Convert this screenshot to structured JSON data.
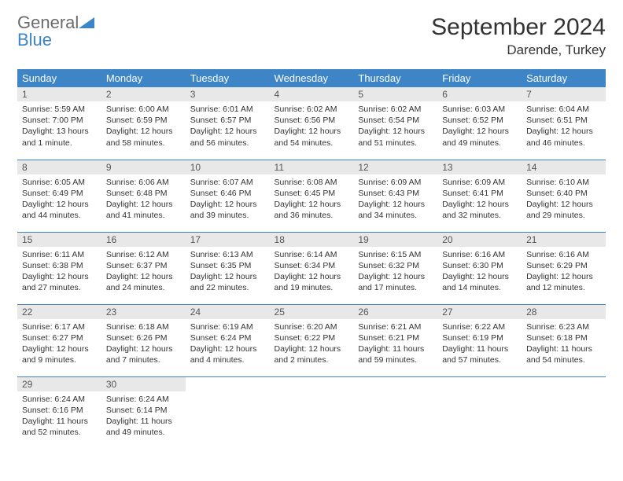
{
  "brand": {
    "word1": "General",
    "word2": "Blue",
    "shape_color": "#3d85c6",
    "text_color_gray": "#6b6b6b"
  },
  "title": "September 2024",
  "location": "Darende, Turkey",
  "colors": {
    "header_bg": "#3d85c6",
    "header_text": "#ffffff",
    "daynum_bg": "#e8e8e8",
    "rule": "#3d85c6"
  },
  "weekdays": [
    "Sunday",
    "Monday",
    "Tuesday",
    "Wednesday",
    "Thursday",
    "Friday",
    "Saturday"
  ],
  "days": [
    {
      "n": "1",
      "sunrise": "Sunrise: 5:59 AM",
      "sunset": "Sunset: 7:00 PM",
      "daylight": "Daylight: 13 hours and 1 minute."
    },
    {
      "n": "2",
      "sunrise": "Sunrise: 6:00 AM",
      "sunset": "Sunset: 6:59 PM",
      "daylight": "Daylight: 12 hours and 58 minutes."
    },
    {
      "n": "3",
      "sunrise": "Sunrise: 6:01 AM",
      "sunset": "Sunset: 6:57 PM",
      "daylight": "Daylight: 12 hours and 56 minutes."
    },
    {
      "n": "4",
      "sunrise": "Sunrise: 6:02 AM",
      "sunset": "Sunset: 6:56 PM",
      "daylight": "Daylight: 12 hours and 54 minutes."
    },
    {
      "n": "5",
      "sunrise": "Sunrise: 6:02 AM",
      "sunset": "Sunset: 6:54 PM",
      "daylight": "Daylight: 12 hours and 51 minutes."
    },
    {
      "n": "6",
      "sunrise": "Sunrise: 6:03 AM",
      "sunset": "Sunset: 6:52 PM",
      "daylight": "Daylight: 12 hours and 49 minutes."
    },
    {
      "n": "7",
      "sunrise": "Sunrise: 6:04 AM",
      "sunset": "Sunset: 6:51 PM",
      "daylight": "Daylight: 12 hours and 46 minutes."
    },
    {
      "n": "8",
      "sunrise": "Sunrise: 6:05 AM",
      "sunset": "Sunset: 6:49 PM",
      "daylight": "Daylight: 12 hours and 44 minutes."
    },
    {
      "n": "9",
      "sunrise": "Sunrise: 6:06 AM",
      "sunset": "Sunset: 6:48 PM",
      "daylight": "Daylight: 12 hours and 41 minutes."
    },
    {
      "n": "10",
      "sunrise": "Sunrise: 6:07 AM",
      "sunset": "Sunset: 6:46 PM",
      "daylight": "Daylight: 12 hours and 39 minutes."
    },
    {
      "n": "11",
      "sunrise": "Sunrise: 6:08 AM",
      "sunset": "Sunset: 6:45 PM",
      "daylight": "Daylight: 12 hours and 36 minutes."
    },
    {
      "n": "12",
      "sunrise": "Sunrise: 6:09 AM",
      "sunset": "Sunset: 6:43 PM",
      "daylight": "Daylight: 12 hours and 34 minutes."
    },
    {
      "n": "13",
      "sunrise": "Sunrise: 6:09 AM",
      "sunset": "Sunset: 6:41 PM",
      "daylight": "Daylight: 12 hours and 32 minutes."
    },
    {
      "n": "14",
      "sunrise": "Sunrise: 6:10 AM",
      "sunset": "Sunset: 6:40 PM",
      "daylight": "Daylight: 12 hours and 29 minutes."
    },
    {
      "n": "15",
      "sunrise": "Sunrise: 6:11 AM",
      "sunset": "Sunset: 6:38 PM",
      "daylight": "Daylight: 12 hours and 27 minutes."
    },
    {
      "n": "16",
      "sunrise": "Sunrise: 6:12 AM",
      "sunset": "Sunset: 6:37 PM",
      "daylight": "Daylight: 12 hours and 24 minutes."
    },
    {
      "n": "17",
      "sunrise": "Sunrise: 6:13 AM",
      "sunset": "Sunset: 6:35 PM",
      "daylight": "Daylight: 12 hours and 22 minutes."
    },
    {
      "n": "18",
      "sunrise": "Sunrise: 6:14 AM",
      "sunset": "Sunset: 6:34 PM",
      "daylight": "Daylight: 12 hours and 19 minutes."
    },
    {
      "n": "19",
      "sunrise": "Sunrise: 6:15 AM",
      "sunset": "Sunset: 6:32 PM",
      "daylight": "Daylight: 12 hours and 17 minutes."
    },
    {
      "n": "20",
      "sunrise": "Sunrise: 6:16 AM",
      "sunset": "Sunset: 6:30 PM",
      "daylight": "Daylight: 12 hours and 14 minutes."
    },
    {
      "n": "21",
      "sunrise": "Sunrise: 6:16 AM",
      "sunset": "Sunset: 6:29 PM",
      "daylight": "Daylight: 12 hours and 12 minutes."
    },
    {
      "n": "22",
      "sunrise": "Sunrise: 6:17 AM",
      "sunset": "Sunset: 6:27 PM",
      "daylight": "Daylight: 12 hours and 9 minutes."
    },
    {
      "n": "23",
      "sunrise": "Sunrise: 6:18 AM",
      "sunset": "Sunset: 6:26 PM",
      "daylight": "Daylight: 12 hours and 7 minutes."
    },
    {
      "n": "24",
      "sunrise": "Sunrise: 6:19 AM",
      "sunset": "Sunset: 6:24 PM",
      "daylight": "Daylight: 12 hours and 4 minutes."
    },
    {
      "n": "25",
      "sunrise": "Sunrise: 6:20 AM",
      "sunset": "Sunset: 6:22 PM",
      "daylight": "Daylight: 12 hours and 2 minutes."
    },
    {
      "n": "26",
      "sunrise": "Sunrise: 6:21 AM",
      "sunset": "Sunset: 6:21 PM",
      "daylight": "Daylight: 11 hours and 59 minutes."
    },
    {
      "n": "27",
      "sunrise": "Sunrise: 6:22 AM",
      "sunset": "Sunset: 6:19 PM",
      "daylight": "Daylight: 11 hours and 57 minutes."
    },
    {
      "n": "28",
      "sunrise": "Sunrise: 6:23 AM",
      "sunset": "Sunset: 6:18 PM",
      "daylight": "Daylight: 11 hours and 54 minutes."
    },
    {
      "n": "29",
      "sunrise": "Sunrise: 6:24 AM",
      "sunset": "Sunset: 6:16 PM",
      "daylight": "Daylight: 11 hours and 52 minutes."
    },
    {
      "n": "30",
      "sunrise": "Sunrise: 6:24 AM",
      "sunset": "Sunset: 6:14 PM",
      "daylight": "Daylight: 11 hours and 49 minutes."
    }
  ]
}
